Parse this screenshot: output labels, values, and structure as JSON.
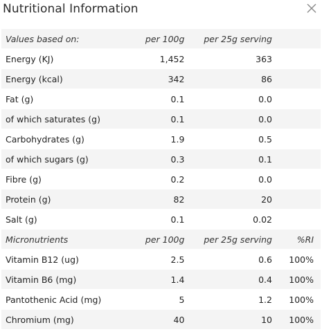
{
  "dialog": {
    "title": "Nutritional Information",
    "close_icon": "close-icon"
  },
  "macros": {
    "header": {
      "label": "Values based on:",
      "per100": "per 100g",
      "serving": "per 25g serving"
    },
    "rows": [
      {
        "name": "Energy (KJ)",
        "per100": "1,452",
        "serving": "363"
      },
      {
        "name": "Energy (kcal)",
        "per100": "342",
        "serving": "86"
      },
      {
        "name": "Fat (g)",
        "per100": "0.1",
        "serving": "0.0"
      },
      {
        "name": "of which saturates (g)",
        "per100": "0.1",
        "serving": "0.0"
      },
      {
        "name": "Carbohydrates (g)",
        "per100": "1.9",
        "serving": "0.5"
      },
      {
        "name": "of which sugars (g)",
        "per100": "0.3",
        "serving": "0.1"
      },
      {
        "name": "Fibre (g)",
        "per100": "0.2",
        "serving": "0.0"
      },
      {
        "name": "Protein (g)",
        "per100": "82",
        "serving": "20"
      },
      {
        "name": "Salt (g)",
        "per100": "0.1",
        "serving": "0.02"
      }
    ]
  },
  "micros": {
    "header": {
      "label": "Micronutrients",
      "per100": "per 100g",
      "serving": "per 25g serving",
      "ri": "%RI"
    },
    "rows": [
      {
        "name": "Vitamin B12 (ug)",
        "per100": "2.5",
        "serving": "0.6",
        "ri": "100%"
      },
      {
        "name": "Vitamin B6 (mg)",
        "per100": "1.4",
        "serving": "0.4",
        "ri": "100%"
      },
      {
        "name": "Pantothenic Acid (mg)",
        "per100": "5",
        "serving": "1.2",
        "ri": "100%"
      },
      {
        "name": "Chromium (mg)",
        "per100": "40",
        "serving": "10",
        "ri": "100%"
      }
    ]
  }
}
